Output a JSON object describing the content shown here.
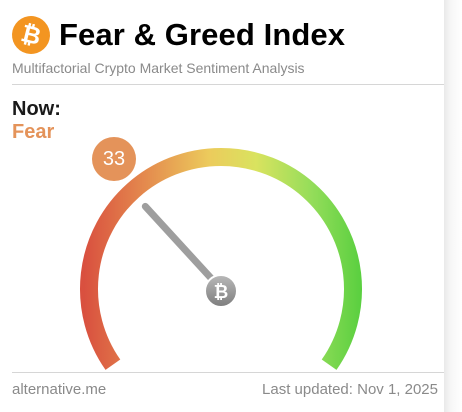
{
  "header": {
    "logo_symbol": "₿",
    "logo_icon": "bitcoin-icon",
    "title": "Fear & Greed Index",
    "subtitle": "Multifactorial Crypto Market Sentiment Analysis"
  },
  "current": {
    "now_label": "Now:",
    "classification": "Fear",
    "value": "33",
    "value_number": 33,
    "scale_min": 0,
    "scale_max": 100,
    "accent_color": "#e4935a"
  },
  "gauge": {
    "colors": [
      "#d9503f",
      "#e48a4e",
      "#eccb5c",
      "#d9e35f",
      "#94dd5a",
      "#59cf3f"
    ],
    "needle_color": "#9e9e9e",
    "hub_icon": "bitcoin-icon",
    "hub_symbol": "₿"
  },
  "footer": {
    "source": "alternative.me",
    "updated": "Last updated: Nov 1, 2025"
  }
}
